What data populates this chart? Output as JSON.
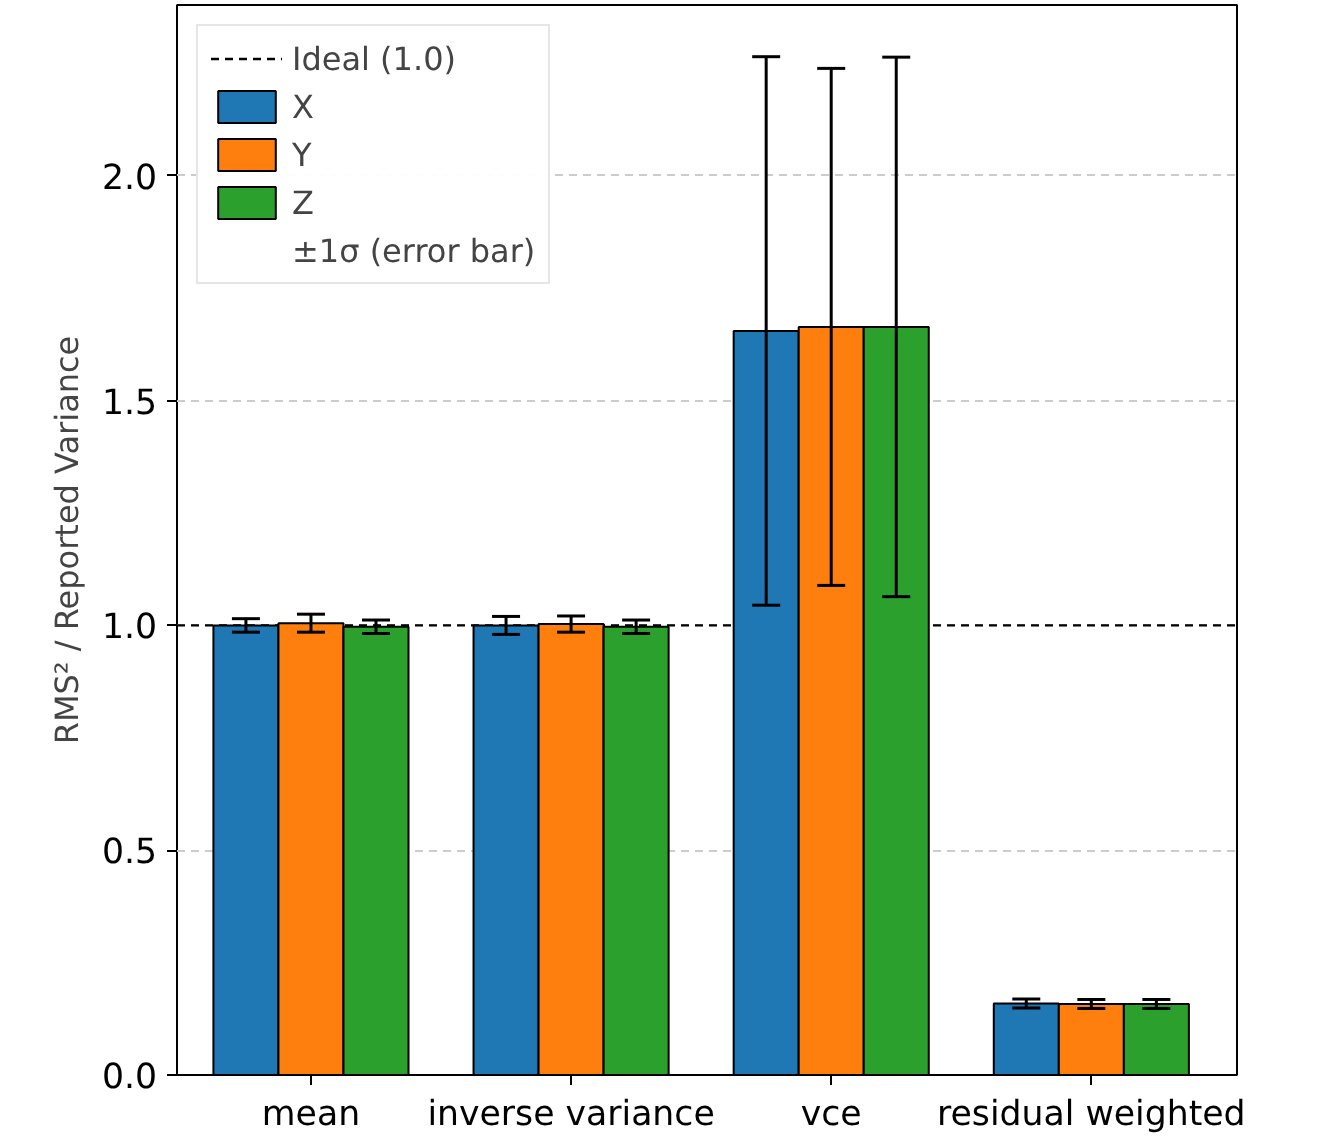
{
  "chart_data": {
    "type": "bar",
    "ylabel": "RMS² / Reported Variance",
    "categories": [
      "mean",
      "inverse variance",
      "vce",
      "residual weighted"
    ],
    "series": [
      {
        "name": "X",
        "color": "#1f77b4",
        "values": [
          1.0,
          1.0,
          1.655,
          0.159
        ],
        "errors": [
          0.015,
          0.02,
          0.61,
          0.01
        ]
      },
      {
        "name": "Y",
        "color": "#ff7f0e",
        "values": [
          1.005,
          1.003,
          1.664,
          0.158
        ],
        "errors": [
          0.02,
          0.018,
          0.575,
          0.01
        ]
      },
      {
        "name": "Z",
        "color": "#2ca02c",
        "values": [
          0.997,
          0.997,
          1.664,
          0.158
        ],
        "errors": [
          0.015,
          0.015,
          0.6,
          0.01
        ]
      }
    ],
    "ylim": [
      0,
      2.38
    ],
    "yticks": [
      {
        "value": 0,
        "label": "0.0"
      },
      {
        "value": 0.5,
        "label": "0.5"
      },
      {
        "value": 1,
        "label": "1.0"
      },
      {
        "value": 1.5,
        "label": "1.5"
      },
      {
        "value": 2,
        "label": "2.0"
      }
    ],
    "ref_lines": [
      {
        "axis": "y",
        "value": 1,
        "label": "Ideal (1.0)",
        "color": "#000000",
        "line_style": "dashed"
      }
    ],
    "annotations": [
      "±1σ (error bar)"
    ],
    "grid": "y",
    "legend": "top left"
  }
}
